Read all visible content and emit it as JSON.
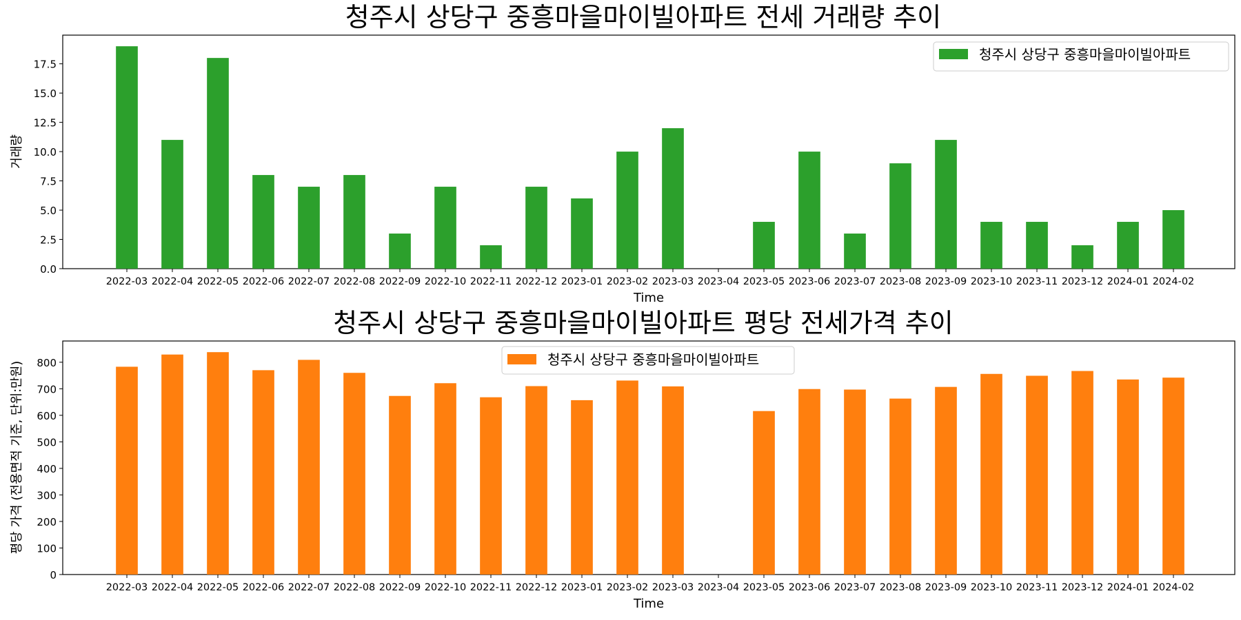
{
  "chart_data": [
    {
      "type": "bar",
      "title": "청주시 상당구 중흥마을마이빌아파트 전세 거래량 추이",
      "xlabel": "Time",
      "ylabel": "거래량",
      "categories": [
        "2022-03",
        "2022-04",
        "2022-05",
        "2022-06",
        "2022-07",
        "2022-08",
        "2022-09",
        "2022-10",
        "2022-11",
        "2022-12",
        "2023-01",
        "2023-02",
        "2023-03",
        "2023-04",
        "2023-05",
        "2023-06",
        "2023-07",
        "2023-08",
        "2023-09",
        "2023-10",
        "2023-11",
        "2023-12",
        "2024-01",
        "2024-02"
      ],
      "series": [
        {
          "name": "청주시 상당구 중흥마을마이빌아파트",
          "color": "#2ca02c",
          "values": [
            19,
            11,
            18,
            8,
            7,
            8,
            3,
            7,
            2,
            7,
            6,
            10,
            12,
            0,
            4,
            10,
            3,
            9,
            11,
            4,
            4,
            2,
            4,
            5
          ]
        }
      ],
      "ylim": [
        0,
        19.95
      ],
      "yticks": [
        "0.0",
        "2.5",
        "5.0",
        "7.5",
        "10.0",
        "12.5",
        "15.0",
        "17.5"
      ],
      "ytick_values": [
        0,
        2.5,
        5,
        7.5,
        10,
        12.5,
        15,
        17.5
      ],
      "legend": "top-right",
      "grid": false
    },
    {
      "type": "bar",
      "title": "청주시 상당구 중흥마을마이빌아파트 평당 전세가격 추이",
      "xlabel": "Time",
      "ylabel": "평당 가격 (전용면적 기준, 단위:만원)",
      "categories": [
        "2022-03",
        "2022-04",
        "2022-05",
        "2022-06",
        "2022-07",
        "2022-08",
        "2022-09",
        "2022-10",
        "2022-11",
        "2022-12",
        "2023-01",
        "2023-02",
        "2023-03",
        "2023-04",
        "2023-05",
        "2023-06",
        "2023-07",
        "2023-08",
        "2023-09",
        "2023-10",
        "2023-11",
        "2023-12",
        "2024-01",
        "2024-02"
      ],
      "series": [
        {
          "name": "청주시 상당구 중흥마을마이빌아파트",
          "color": "#ff7f0e",
          "values": [
            783,
            829,
            838,
            770,
            809,
            760,
            673,
            721,
            668,
            710,
            657,
            731,
            709,
            null,
            616,
            699,
            697,
            663,
            707,
            756,
            749,
            767,
            735,
            742
          ]
        }
      ],
      "ylim": [
        0,
        880
      ],
      "yticks": [
        "0",
        "100",
        "200",
        "300",
        "400",
        "500",
        "600",
        "700",
        "800"
      ],
      "ytick_values": [
        0,
        100,
        200,
        300,
        400,
        500,
        600,
        700,
        800
      ],
      "legend": "top-center",
      "grid": false
    }
  ]
}
